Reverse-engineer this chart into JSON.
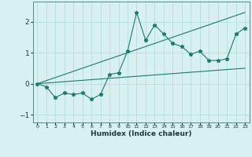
{
  "xlabel": "Humidex (Indice chaleur)",
  "x": [
    0,
    1,
    2,
    3,
    4,
    5,
    6,
    7,
    8,
    9,
    10,
    11,
    12,
    13,
    14,
    15,
    16,
    17,
    18,
    19,
    20,
    21,
    22,
    23
  ],
  "y_main": [
    0.0,
    -0.1,
    -0.45,
    -0.3,
    -0.35,
    -0.3,
    -0.5,
    -0.35,
    0.3,
    0.35,
    1.05,
    2.3,
    1.4,
    1.9,
    1.6,
    1.3,
    1.2,
    0.95,
    1.05,
    0.75,
    0.75,
    0.8,
    1.6,
    1.8
  ],
  "y_upper": [
    0.0,
    0.1,
    0.2,
    0.3,
    0.4,
    0.5,
    0.6,
    0.7,
    0.8,
    0.9,
    1.0,
    1.1,
    1.2,
    1.3,
    1.4,
    1.5,
    1.6,
    1.7,
    1.8,
    1.9,
    2.0,
    2.1,
    2.2,
    2.3
  ],
  "y_lower": [
    0.0,
    0.022,
    0.044,
    0.065,
    0.087,
    0.109,
    0.13,
    0.152,
    0.174,
    0.196,
    0.217,
    0.239,
    0.261,
    0.283,
    0.304,
    0.326,
    0.348,
    0.37,
    0.391,
    0.413,
    0.435,
    0.457,
    0.478,
    0.5
  ],
  "line_color": "#1a7a6e",
  "bg_color": "#d8f0ef",
  "grid_color": "#aaddda",
  "ylim": [
    -1.25,
    2.65
  ],
  "yticks": [
    -1,
    0,
    1,
    2
  ],
  "figsize": [
    3.2,
    2.0
  ],
  "dpi": 100
}
